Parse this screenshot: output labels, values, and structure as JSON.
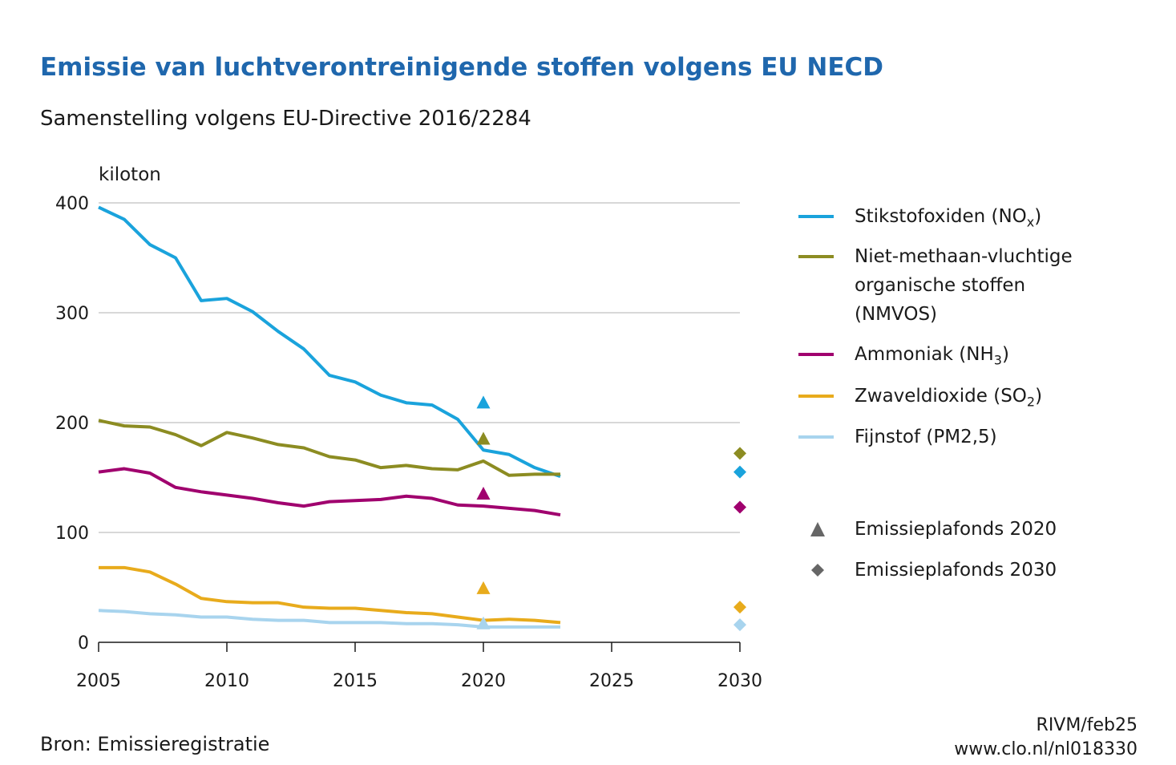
{
  "header": {
    "title": "Emissie van luchtverontreinigende stoffen volgens EU NECD",
    "subtitle": "Samenstelling volgens EU-Directive 2016/2284"
  },
  "footer": {
    "source": "Bron: Emissieregistratie",
    "credit_line1": "RIVM/feb25",
    "credit_line2": "www.clo.nl/nl018330"
  },
  "legend": {
    "nox": "Stikstofoxiden (NOx)",
    "nmvos": "Niet-methaan-vluchtige organische stoffen (NMVOS)",
    "nh3": "Ammoniak (NH3)",
    "so2": "Zwaveldioxide (SO2)",
    "pm": "Fijnstof (PM2,5)",
    "ceiling2020": "Emissieplafonds 2020",
    "ceiling2030": "Emissieplafonds 2030"
  },
  "colors": {
    "nox": "#1aa3dc",
    "nmvos": "#8c8c22",
    "nh3": "#a0006e",
    "so2": "#e8ab1c",
    "pm": "#a8d4ee",
    "grid": "#cccccc",
    "symbol": "#666666"
  },
  "chart_data": {
    "type": "line",
    "ylabel": "kiloton",
    "xlim": [
      2005,
      2030
    ],
    "ylim": [
      0,
      400
    ],
    "x_ticks": [
      "2005",
      "2010",
      "2015",
      "2020",
      "2025",
      "2030"
    ],
    "y_ticks": [
      "0",
      "100",
      "200",
      "300",
      "400"
    ],
    "grid": true,
    "legend_position": "right",
    "x": [
      2005,
      2006,
      2007,
      2008,
      2009,
      2010,
      2011,
      2012,
      2013,
      2014,
      2015,
      2016,
      2017,
      2018,
      2019,
      2020,
      2021,
      2022,
      2023
    ],
    "series": [
      {
        "key": "nox",
        "name": "Stikstofoxiden (NOx)",
        "values": [
          396,
          385,
          362,
          350,
          311,
          313,
          301,
          283,
          267,
          243,
          237,
          225,
          218,
          216,
          203,
          175,
          171,
          159,
          151
        ]
      },
      {
        "key": "nmvos",
        "name": "Niet-methaan-vluchtige organische stoffen (NMVOS)",
        "values": [
          202,
          197,
          196,
          189,
          179,
          191,
          186,
          180,
          177,
          169,
          166,
          159,
          161,
          158,
          157,
          165,
          152,
          153,
          153
        ]
      },
      {
        "key": "nh3",
        "name": "Ammoniak (NH3)",
        "values": [
          155,
          158,
          154,
          141,
          137,
          134,
          131,
          127,
          124,
          128,
          129,
          130,
          133,
          131,
          125,
          124,
          122,
          120,
          116
        ]
      },
      {
        "key": "so2",
        "name": "Zwaveldioxide (SO2)",
        "values": [
          68,
          68,
          64,
          53,
          40,
          37,
          36,
          36,
          32,
          31,
          31,
          29,
          27,
          26,
          23,
          20,
          21,
          20,
          18
        ]
      },
      {
        "key": "pm",
        "name": "Fijnstof (PM2,5)",
        "values": [
          29,
          28,
          26,
          25,
          23,
          23,
          21,
          20,
          20,
          18,
          18,
          18,
          17,
          17,
          16,
          14,
          14,
          14,
          14
        ]
      }
    ],
    "ceilings_2020": [
      {
        "key": "nox",
        "x": 2020,
        "value": 218
      },
      {
        "key": "nmvos",
        "x": 2020,
        "value": 185
      },
      {
        "key": "nh3",
        "x": 2020,
        "value": 135
      },
      {
        "key": "so2",
        "x": 2020,
        "value": 49
      },
      {
        "key": "pm",
        "x": 2020,
        "value": 17
      }
    ],
    "ceilings_2030": [
      {
        "key": "nmvos",
        "x": 2030,
        "value": 172
      },
      {
        "key": "nox",
        "x": 2030,
        "value": 155
      },
      {
        "key": "nh3",
        "x": 2030,
        "value": 123
      },
      {
        "key": "so2",
        "x": 2030,
        "value": 32
      },
      {
        "key": "pm",
        "x": 2030,
        "value": 16
      }
    ]
  }
}
